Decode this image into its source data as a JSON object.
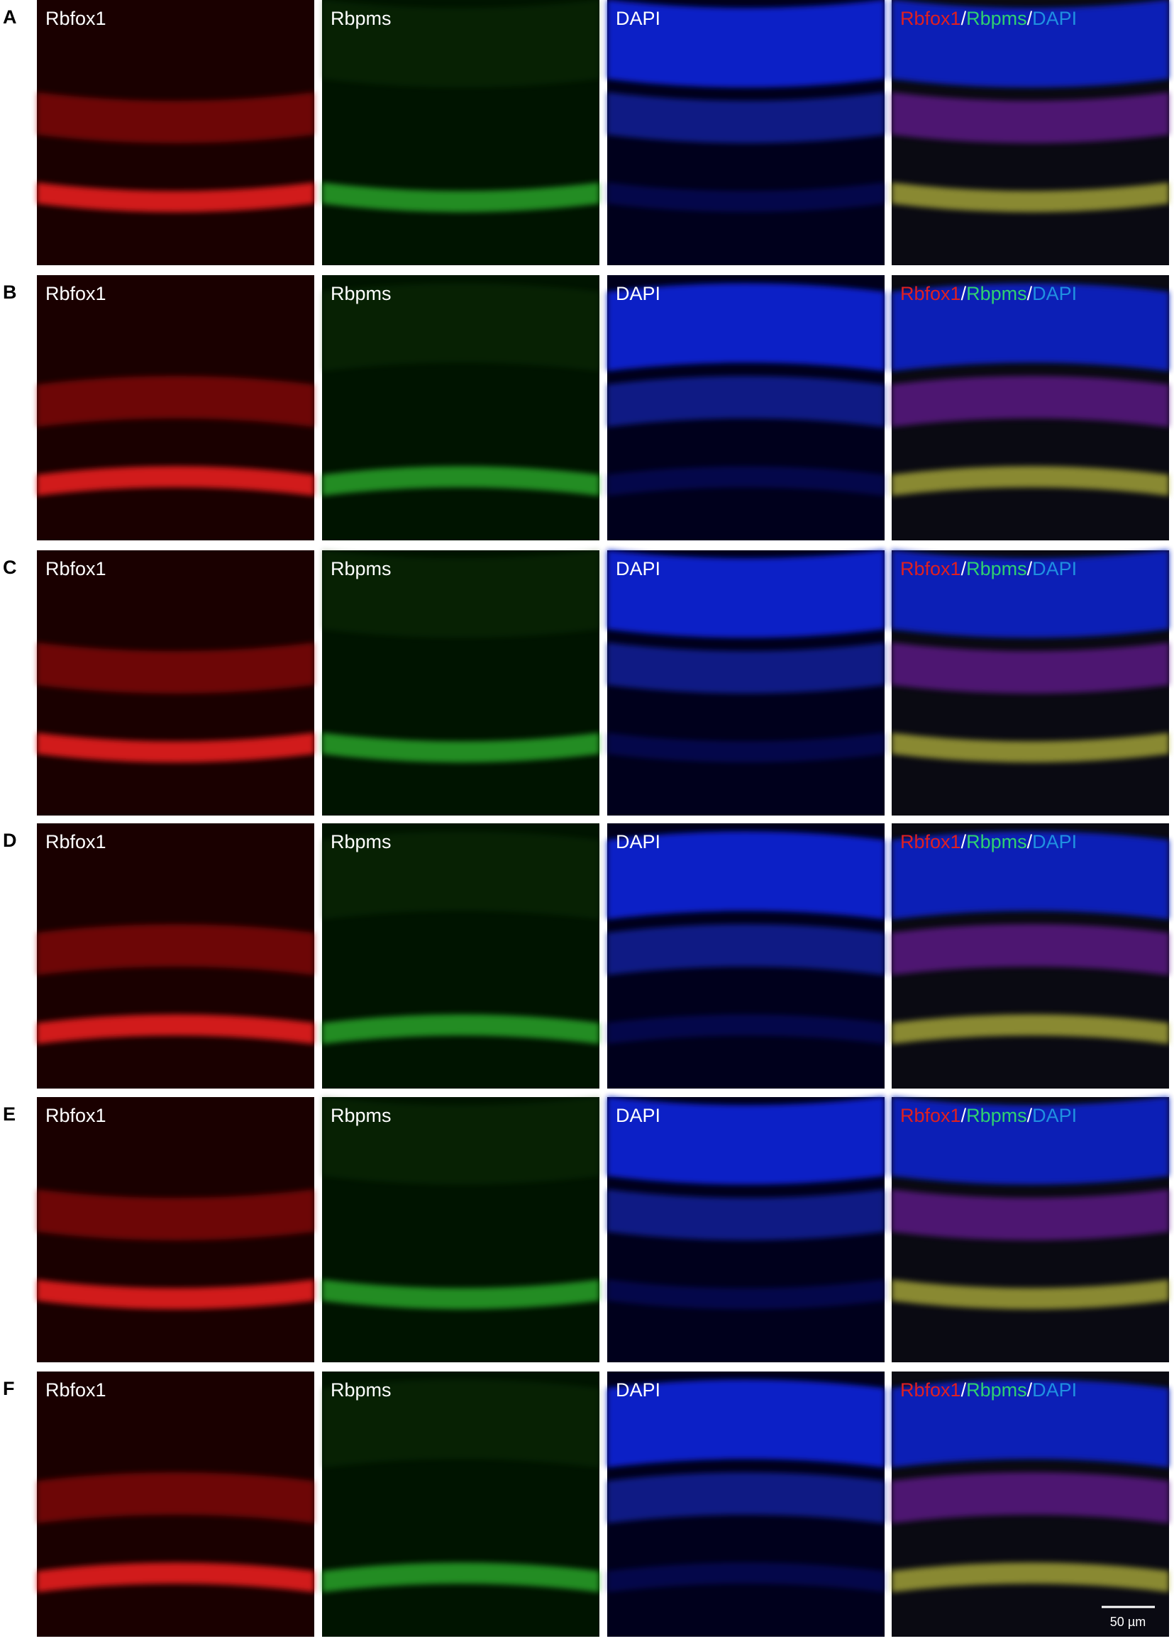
{
  "rows": [
    {
      "letter": "A",
      "channels": [
        "Rbfox1",
        "Rbpms",
        "DAPI"
      ],
      "merge": [
        "Rbfox1",
        "/",
        "Rbpms",
        "/",
        "DAPI"
      ]
    },
    {
      "letter": "B",
      "channels": [
        "Rbfox1",
        "Rbpms",
        "DAPI"
      ],
      "merge": [
        "Rbfox1",
        "/",
        "Rbpms",
        "/",
        "DAPI"
      ]
    },
    {
      "letter": "C",
      "channels": [
        "Rbfox1",
        "Rbpms",
        "DAPI"
      ],
      "merge": [
        "Rbfox1",
        "/",
        "Rbpms",
        "/",
        "DAPI"
      ]
    },
    {
      "letter": "D",
      "channels": [
        "Rbfox1",
        "Rbpms",
        "DAPI"
      ],
      "merge": [
        "Rbfox1",
        "/",
        "Rbpms",
        "/",
        "DAPI"
      ]
    },
    {
      "letter": "E",
      "channels": [
        "Rbfox1",
        "Rbpms",
        "DAPI"
      ],
      "merge": [
        "Rbfox1",
        "/",
        "Rbpms",
        "/",
        "DAPI"
      ]
    },
    {
      "letter": "F",
      "channels": [
        "Rbfox1",
        "Rbpms",
        "DAPI"
      ],
      "merge": [
        "Rbfox1",
        "/",
        "Rbpms",
        "/",
        "DAPI"
      ]
    }
  ],
  "scale_bar": "50 µm"
}
